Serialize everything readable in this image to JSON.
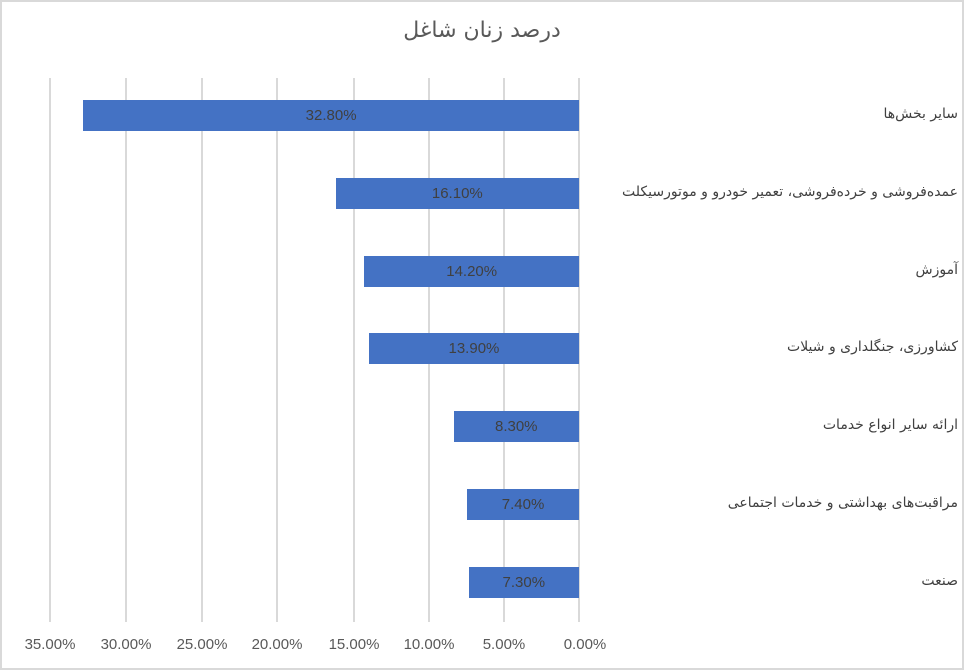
{
  "chart": {
    "title": "درصد زنان شاغل",
    "bar_color": "#4472c4",
    "gridline_color": "#d9d9d9",
    "x_ticks": [
      "35.00%",
      "30.00%",
      "25.00%",
      "20.00%",
      "15.00%",
      "10.00%",
      "5.00%",
      "0.00%"
    ],
    "categories": [
      {
        "label": "سایر بخش‌ها",
        "value": 32.8,
        "value_label": "32.80%"
      },
      {
        "label": "عمده‌فروشی و خرده‌فروشی، تعمیر خودرو و موتورسیکلت",
        "value": 16.1,
        "value_label": "16.10%"
      },
      {
        "label": "آموزش",
        "value": 14.2,
        "value_label": "14.20%"
      },
      {
        "label": "کشاورزی، جنگلداری و شیلات",
        "value": 13.9,
        "value_label": "13.90%"
      },
      {
        "label": "ارائه سایر انواع خدمات",
        "value": 8.3,
        "value_label": "8.30%"
      },
      {
        "label": "مراقبت‌های بهداشتی و خدمات اجتماعی",
        "value": 7.4,
        "value_label": "7.40%"
      },
      {
        "label": "صنعت",
        "value": 7.3,
        "value_label": "7.30%"
      }
    ]
  },
  "chart_data": {
    "type": "bar",
    "orientation": "horizontal",
    "title": "درصد زنان شاغل",
    "categories": [
      "سایر بخش‌ها",
      "عمده‌فروشی و خرده‌فروشی، تعمیر خودرو و موتورسیکلت",
      "آموزش",
      "کشاورزی، جنگلداری و شیلات",
      "ارائه سایر انواع خدمات",
      "مراقبت‌های بهداشتی و خدمات اجتماعی",
      "صنعت"
    ],
    "values": [
      32.8,
      16.1,
      14.2,
      13.9,
      8.3,
      7.4,
      7.3
    ],
    "data_labels": [
      "32.80%",
      "16.10%",
      "14.20%",
      "13.90%",
      "8.30%",
      "7.40%",
      "7.30%"
    ],
    "xlabel": "",
    "ylabel": "",
    "xlim": [
      0,
      35
    ],
    "x_ticks": [
      "0.00%",
      "5.00%",
      "10.00%",
      "15.00%",
      "20.00%",
      "25.00%",
      "30.00%",
      "35.00%"
    ],
    "x_axis_reversed": true,
    "grid": "vertical",
    "legend": "none",
    "series_color": "#4472c4"
  }
}
